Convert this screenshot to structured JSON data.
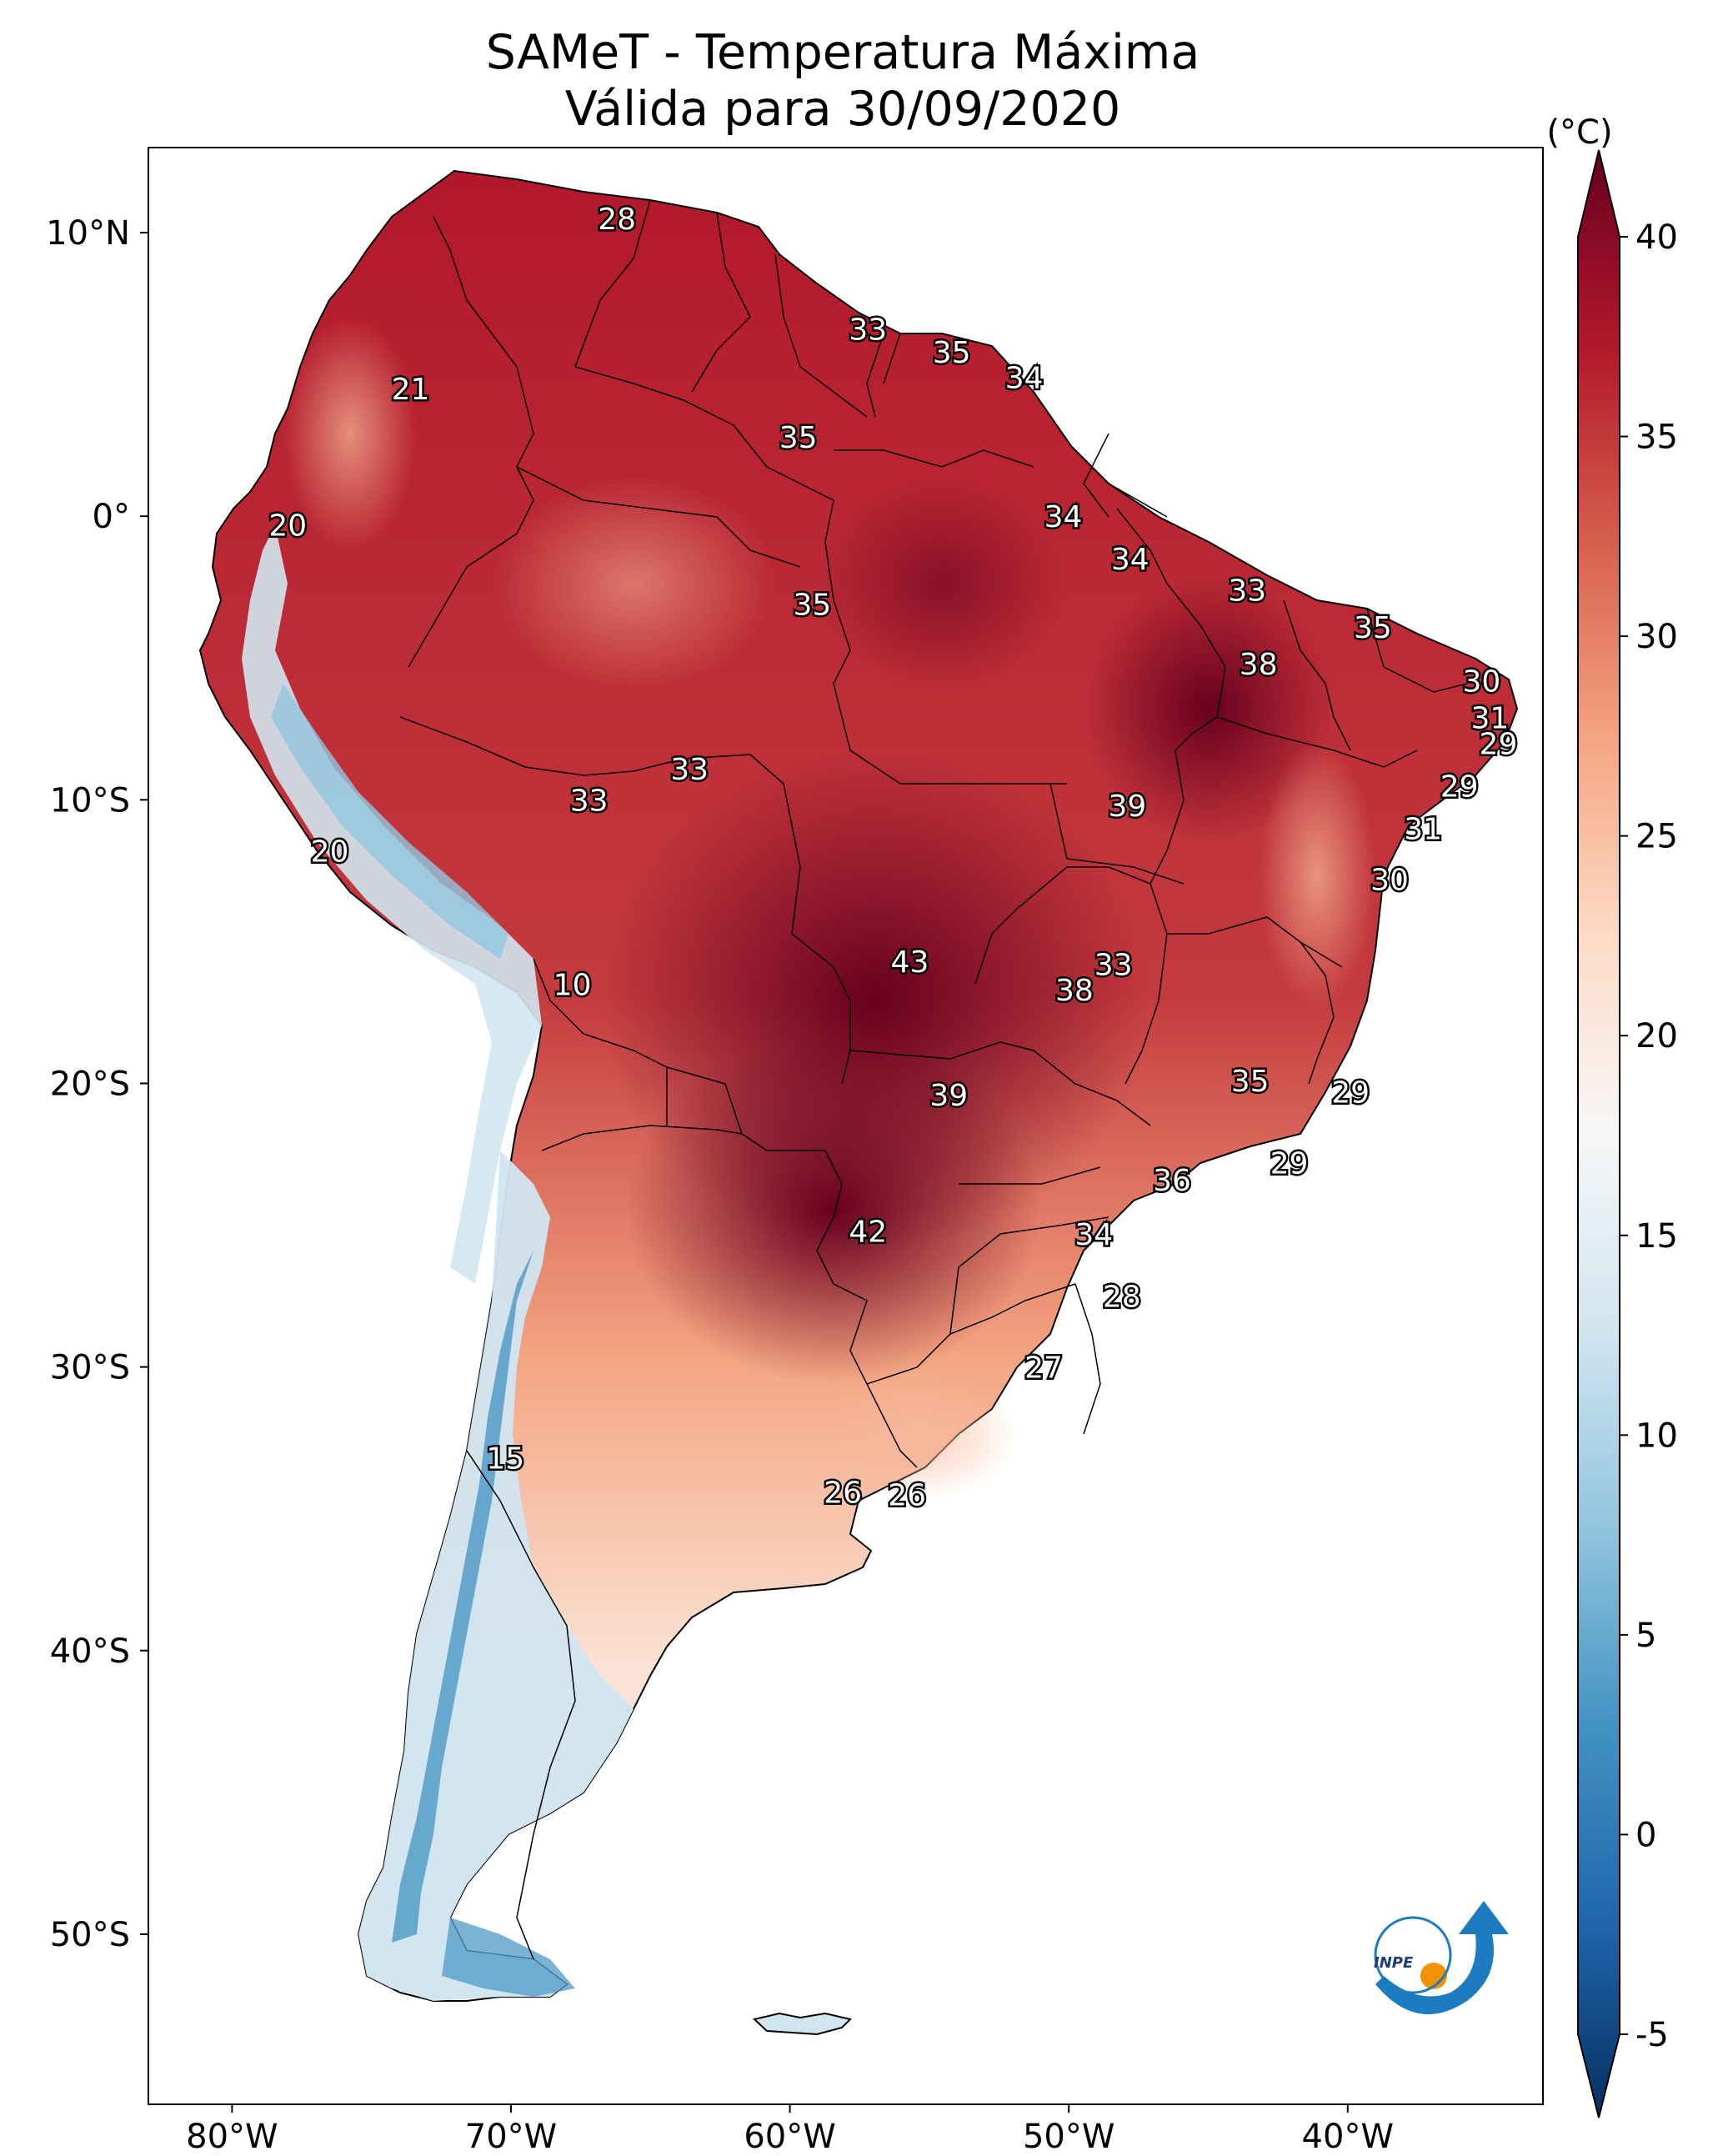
{
  "title": {
    "line1": "SAMeT - Temperatura Máxima",
    "line2": "Válida para 30/09/2020"
  },
  "colorbar": {
    "unit": "(°C)",
    "min": -5,
    "max": 40,
    "ticks": [
      "40",
      "35",
      "30",
      "25",
      "20",
      "15",
      "10",
      "5",
      "0",
      "-5"
    ],
    "colors": [
      "#053061",
      "#2166ac",
      "#4393c3",
      "#92c5de",
      "#d1e5f0",
      "#f7f7f7",
      "#fddbc7",
      "#f4a582",
      "#d6604d",
      "#b2182b",
      "#67001f"
    ]
  },
  "axes": {
    "lon_ticks": [
      "80°W",
      "70°W",
      "60°W",
      "50°W",
      "40°W"
    ],
    "lat_ticks": [
      "10°N",
      "0°",
      "10°S",
      "20°S",
      "30°S",
      "40°S",
      "50°S"
    ],
    "lon_range": [
      -83,
      -33
    ],
    "lat_range": [
      -56,
      13
    ]
  },
  "temperature_labels": [
    {
      "value": "28",
      "lon": -66.2,
      "lat": 10.5
    },
    {
      "value": "33",
      "lon": -57.2,
      "lat": 6.6
    },
    {
      "value": "35",
      "lon": -54.2,
      "lat": 5.8
    },
    {
      "value": "34",
      "lon": -51.6,
      "lat": 4.9
    },
    {
      "value": "21",
      "lon": -73.6,
      "lat": 4.5
    },
    {
      "value": "35",
      "lon": -59.7,
      "lat": 2.8
    },
    {
      "value": "34",
      "lon": -50.2,
      "lat": 0.0
    },
    {
      "value": "20",
      "lon": -78.0,
      "lat": -0.3
    },
    {
      "value": "34",
      "lon": -47.8,
      "lat": -1.5
    },
    {
      "value": "35",
      "lon": -59.2,
      "lat": -3.1
    },
    {
      "value": "33",
      "lon": -43.6,
      "lat": -2.6
    },
    {
      "value": "35",
      "lon": -39.1,
      "lat": -3.9
    },
    {
      "value": "38",
      "lon": -43.2,
      "lat": -5.2
    },
    {
      "value": "30",
      "lon": -35.2,
      "lat": -5.8
    },
    {
      "value": "31",
      "lon": -34.9,
      "lat": -7.1
    },
    {
      "value": "29",
      "lon": -34.6,
      "lat": -8.0
    },
    {
      "value": "33",
      "lon": -63.6,
      "lat": -8.9
    },
    {
      "value": "33",
      "lon": -67.2,
      "lat": -10.0
    },
    {
      "value": "39",
      "lon": -47.9,
      "lat": -10.2
    },
    {
      "value": "29",
      "lon": -36.0,
      "lat": -9.5
    },
    {
      "value": "31",
      "lon": -37.3,
      "lat": -11.0
    },
    {
      "value": "20",
      "lon": -76.5,
      "lat": -11.8
    },
    {
      "value": "30",
      "lon": -38.5,
      "lat": -12.8
    },
    {
      "value": "43",
      "lon": -55.7,
      "lat": -15.7
    },
    {
      "value": "33",
      "lon": -48.4,
      "lat": -15.8
    },
    {
      "value": "38",
      "lon": -49.8,
      "lat": -16.7
    },
    {
      "value": "10",
      "lon": -67.8,
      "lat": -16.5
    },
    {
      "value": "35",
      "lon": -43.5,
      "lat": -19.9
    },
    {
      "value": "29",
      "lon": -39.9,
      "lat": -20.3
    },
    {
      "value": "39",
      "lon": -54.3,
      "lat": -20.4
    },
    {
      "value": "29",
      "lon": -42.1,
      "lat": -22.8
    },
    {
      "value": "36",
      "lon": -46.3,
      "lat": -23.4
    },
    {
      "value": "42",
      "lon": -57.2,
      "lat": -25.2
    },
    {
      "value": "34",
      "lon": -49.1,
      "lat": -25.3
    },
    {
      "value": "28",
      "lon": -48.1,
      "lat": -27.5
    },
    {
      "value": "27",
      "lon": -50.9,
      "lat": -30.0
    },
    {
      "value": "15",
      "lon": -70.2,
      "lat": -33.2
    },
    {
      "value": "26",
      "lon": -58.1,
      "lat": -34.4
    },
    {
      "value": "26",
      "lon": -55.8,
      "lat": -34.5
    }
  ],
  "logo": {
    "text": "INPE"
  }
}
